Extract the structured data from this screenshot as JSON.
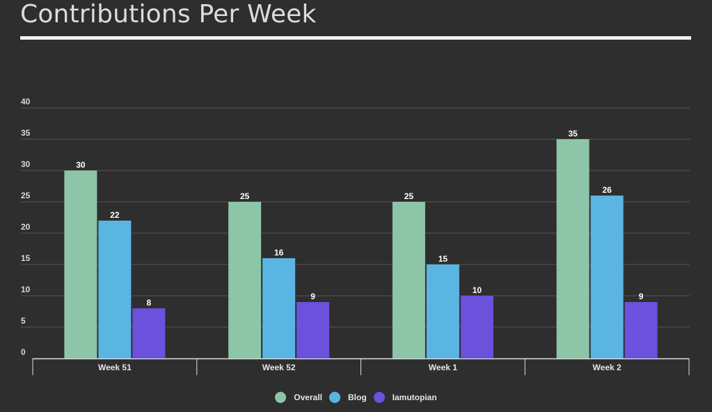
{
  "chart_data": {
    "type": "bar",
    "title": "Contributions Per Week",
    "categories": [
      "Week 51",
      "Week 52",
      "Week 1",
      "Week 2"
    ],
    "series": [
      {
        "name": "Overall",
        "color": "#8dc5a9",
        "values": [
          30,
          25,
          25,
          35
        ]
      },
      {
        "name": "Blog",
        "color": "#5bb5e3",
        "values": [
          22,
          16,
          15,
          26
        ]
      },
      {
        "name": "Iamutopian",
        "color": "#6c51dc",
        "values": [
          8,
          9,
          10,
          9
        ]
      }
    ],
    "ylim": [
      0,
      40
    ],
    "yticks": [
      0,
      5,
      10,
      15,
      20,
      25,
      30,
      35,
      40
    ],
    "grid": true,
    "legend_position": "bottom",
    "xlabel": "",
    "ylabel": ""
  }
}
